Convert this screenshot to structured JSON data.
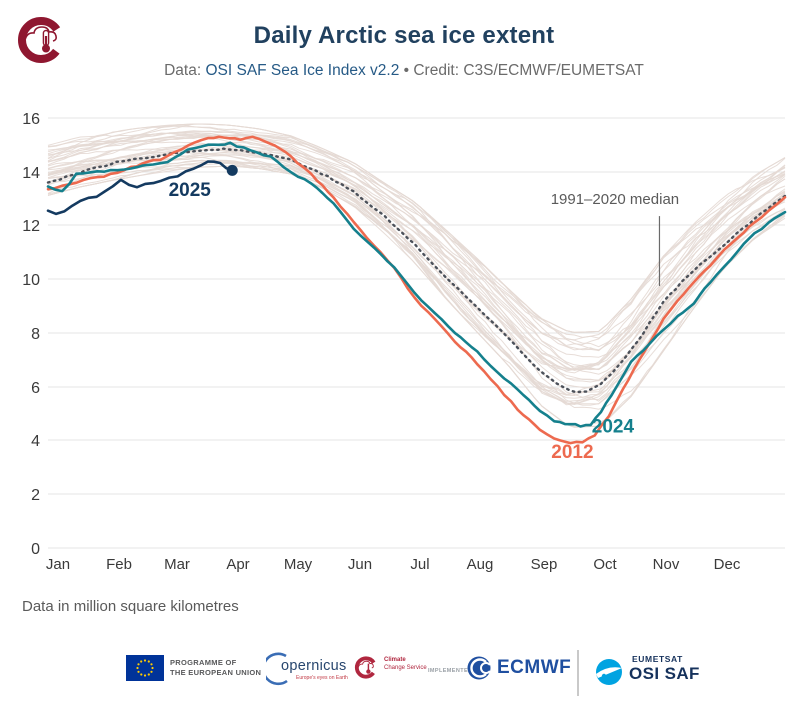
{
  "header": {
    "title": "Daily Arctic sea ice extent",
    "subtitle_prefix": "Data: ",
    "subtitle_link": "OSI SAF Sea Ice Index v2.2",
    "subtitle_suffix": " • Credit: C3S/ECMWF/EUMETSAT"
  },
  "footnote": "Data in million square kilometres",
  "chart_data": {
    "type": "line",
    "title": "Daily Arctic sea ice extent",
    "unit_label": "Data in million square kilometres",
    "ylim": [
      0,
      16
    ],
    "yticks": [
      "0",
      "2",
      "4",
      "6",
      "8",
      "10",
      "12",
      "14",
      "16"
    ],
    "x_months": [
      "Jan",
      "Feb",
      "Mar",
      "Apr",
      "May",
      "Jun",
      "Jul",
      "Aug",
      "Sep",
      "Oct",
      "Nov",
      "Dec"
    ],
    "grid": true,
    "annotations": {
      "median": {
        "label": "1991–2020 median",
        "text_day": 280,
        "text_value": 12.8,
        "line_day": 302,
        "line_top_value": 12.35,
        "line_bottom_value": 9.75,
        "color": "#5a5a5a"
      }
    },
    "series": [
      {
        "name": "1991-2020 median",
        "style": "dotted",
        "color": "#4c515a",
        "days": [
          0,
          15,
          31,
          45,
          59,
          74,
          84,
          95,
          105,
          120,
          135,
          151,
          166,
          181,
          196,
          212,
          227,
          243,
          251,
          258,
          266,
          273,
          281,
          288,
          297,
          304,
          319,
          334,
          349,
          364
        ],
        "values": [
          13.6,
          13.95,
          14.3,
          14.5,
          14.65,
          14.8,
          14.85,
          14.8,
          14.7,
          14.45,
          13.95,
          13.25,
          12.35,
          11.3,
          10.1,
          8.95,
          7.85,
          6.6,
          6.15,
          5.85,
          5.8,
          6.1,
          6.7,
          7.35,
          8.35,
          9.2,
          10.35,
          11.3,
          12.25,
          13.1
        ]
      },
      {
        "name": "2012",
        "style": "solid",
        "color": "#ed6a4f",
        "label": "2012",
        "label_day": 259,
        "label_value": 3.35,
        "days": [
          0,
          7,
          14,
          21,
          31,
          41,
          52,
          59,
          69,
          79,
          87,
          95,
          101,
          107,
          112,
          120,
          130,
          141,
          151,
          161,
          171,
          181,
          191,
          201,
          212,
          222,
          232,
          243,
          250,
          258,
          264,
          270,
          277,
          284,
          292,
          299,
          304,
          311,
          319,
          327,
          334,
          341,
          349,
          356,
          364
        ],
        "values": [
          13.35,
          13.5,
          13.6,
          13.75,
          13.9,
          14.15,
          14.4,
          14.55,
          15.0,
          15.25,
          15.3,
          15.2,
          15.3,
          15.15,
          15.0,
          14.55,
          13.9,
          13.05,
          12.1,
          11.25,
          10.4,
          9.3,
          8.5,
          7.7,
          6.85,
          6.0,
          5.15,
          4.4,
          4.05,
          3.9,
          3.95,
          4.2,
          4.9,
          5.9,
          7.0,
          7.9,
          8.5,
          9.2,
          9.9,
          10.5,
          11.1,
          11.6,
          12.1,
          12.55,
          13.05
        ]
      },
      {
        "name": "2024",
        "style": "solid",
        "color": "#15808d",
        "label": "2024",
        "label_day": 279,
        "label_value": 4.3,
        "days": [
          0,
          7,
          14,
          21,
          31,
          41,
          52,
          59,
          69,
          79,
          90,
          100,
          110,
          120,
          130,
          141,
          151,
          161,
          171,
          181,
          191,
          201,
          212,
          222,
          232,
          243,
          250,
          258,
          263,
          268,
          273,
          281,
          288,
          297,
          304,
          311,
          319,
          327,
          334,
          341,
          349,
          356,
          364
        ],
        "values": [
          13.45,
          13.25,
          13.9,
          14.0,
          14.05,
          14.15,
          14.3,
          14.35,
          14.8,
          15.0,
          15.05,
          14.8,
          14.55,
          14.0,
          13.55,
          12.85,
          11.9,
          11.15,
          10.45,
          9.5,
          8.75,
          8.0,
          7.3,
          6.55,
          5.9,
          5.1,
          4.7,
          4.6,
          4.55,
          4.6,
          5.05,
          6.0,
          6.9,
          7.6,
          8.1,
          8.6,
          9.1,
          9.9,
          10.45,
          11.1,
          11.7,
          12.1,
          12.5
        ]
      },
      {
        "name": "2025",
        "style": "solid",
        "color": "#143a60",
        "end_dot": true,
        "label": "2025",
        "label_day": 70,
        "label_value": 13.1,
        "days": [
          0,
          4,
          8,
          12,
          16,
          20,
          24,
          28,
          32,
          36,
          40,
          44,
          48,
          52,
          56,
          60,
          64,
          68,
          72,
          76,
          79,
          82,
          85,
          88,
          91
        ],
        "values": [
          12.55,
          12.4,
          12.5,
          12.75,
          12.9,
          13.0,
          13.1,
          13.25,
          13.45,
          13.7,
          13.5,
          13.4,
          13.55,
          13.6,
          13.65,
          13.8,
          13.85,
          14.0,
          14.1,
          14.25,
          14.4,
          14.35,
          14.3,
          14.15,
          14.05
        ]
      }
    ],
    "background": {
      "description": "individual years 1979-2023 envelope",
      "color": "#e4d9d4",
      "count": 40,
      "days": [
        0,
        15,
        31,
        46,
        59,
        74,
        90,
        105,
        120,
        135,
        151,
        166,
        181,
        196,
        212,
        227,
        243,
        258,
        273,
        288,
        304,
        319,
        334,
        349,
        364
      ],
      "upper": [
        15.0,
        15.3,
        15.5,
        15.65,
        15.75,
        15.8,
        15.75,
        15.6,
        15.35,
        14.9,
        14.35,
        13.6,
        12.9,
        11.9,
        10.8,
        9.7,
        8.6,
        8.05,
        8.1,
        9.3,
        10.9,
        12.1,
        13.1,
        13.9,
        14.55
      ],
      "lower": [
        13.1,
        13.4,
        13.65,
        13.85,
        14.0,
        14.15,
        14.2,
        14.1,
        13.9,
        13.4,
        12.7,
        11.7,
        10.6,
        9.3,
        8.0,
        6.8,
        5.3,
        4.45,
        4.5,
        5.6,
        7.3,
        8.9,
        10.4,
        11.5,
        12.25
      ]
    }
  },
  "footer": {
    "eu": {
      "line1": "PROGRAMME OF",
      "line2": "THE EUROPEAN UNION"
    },
    "copernicus": {
      "name": "opernicus",
      "tagline": "Europe's eyes on Earth"
    },
    "c3s": {
      "line1": "Climate",
      "line2": "Change Service"
    },
    "implemented_by": "IMPLEMENTED BY",
    "ecmwf": "ECMWF",
    "osisaf": {
      "brand": "EUMETSAT",
      "name": "OSI SAF"
    }
  },
  "colors": {
    "title": "#21415f",
    "subtitle": "#6b6b6b",
    "subtitle_link": "#265a86",
    "grid": "#e4e4e4",
    "axis_text": "#3a3a3a",
    "s2025": "#143a60",
    "s2024": "#15808d",
    "s2012": "#ed6a4f",
    "median": "#4c515a",
    "background_lines": "#e4d9d4"
  }
}
